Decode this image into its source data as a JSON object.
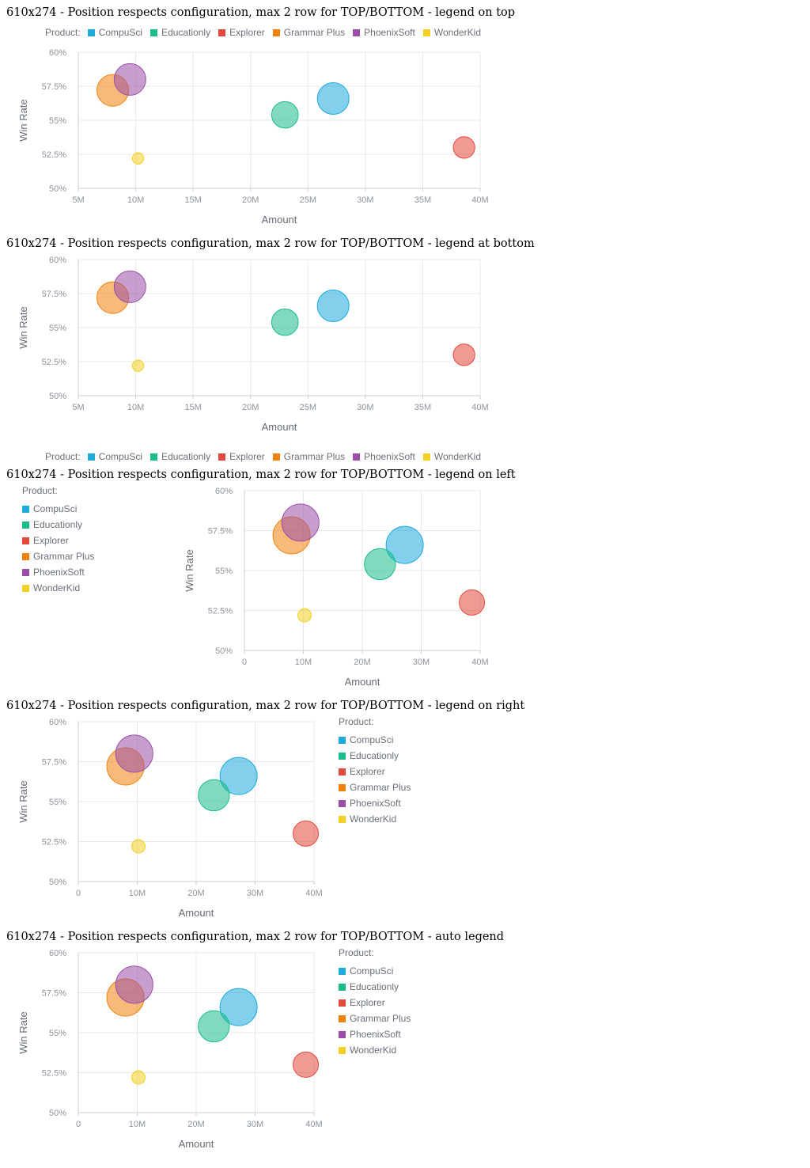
{
  "legend_title": "Product:",
  "products": [
    {
      "name": "CompuSci",
      "color": "#1eaadc"
    },
    {
      "name": "Educationly",
      "color": "#1abc8c"
    },
    {
      "name": "Explorer",
      "color": "#e2493d"
    },
    {
      "name": "Grammar Plus",
      "color": "#f0820c"
    },
    {
      "name": "PhoenixSoft",
      "color": "#9b4ea8"
    },
    {
      "name": "WonderKid",
      "color": "#f2d024"
    }
  ],
  "sections": [
    {
      "title": "610x274 - Position respects configuration, max 2 row for TOP/BOTTOM - legend on top",
      "legend_position": "top"
    },
    {
      "title": "610x274 - Position respects configuration, max 2 row for TOP/BOTTOM - legend at bottom",
      "legend_position": "bottom"
    },
    {
      "title": "610x274 - Position respects configuration, max 2 row for TOP/BOTTOM - legend on left",
      "legend_position": "left"
    },
    {
      "title": "610x274 - Position respects configuration, max 2 row for TOP/BOTTOM - legend on right",
      "legend_position": "right"
    },
    {
      "title": "610x274 - Position respects configuration, max 2 row for TOP/BOTTOM - auto legend",
      "legend_position": "right"
    }
  ],
  "chart_data": [
    {
      "type": "scatter",
      "xlabel": "Amount",
      "ylabel": "Win Rate",
      "xlim": [
        5,
        40
      ],
      "ylim": [
        50,
        60
      ],
      "x_ticks": [
        "5M",
        "10M",
        "15M",
        "20M",
        "25M",
        "30M",
        "35M",
        "40M"
      ],
      "y_ticks": [
        "50%",
        "52.5%",
        "55%",
        "57.5%",
        "60%"
      ],
      "points": [
        {
          "series": "CompuSci",
          "x": 27.2,
          "y": 56.6,
          "size": 5
        },
        {
          "series": "Educationly",
          "x": 23,
          "y": 55.4,
          "size": 4
        },
        {
          "series": "Explorer",
          "x": 38.6,
          "y": 53,
          "size": 3
        },
        {
          "series": "Grammar Plus",
          "x": 8,
          "y": 57.2,
          "size": 5
        },
        {
          "series": "PhoenixSoft",
          "x": 9.5,
          "y": 58,
          "size": 5
        },
        {
          "series": "WonderKid",
          "x": 10.2,
          "y": 52.2,
          "size": 1
        }
      ]
    },
    {
      "type": "scatter",
      "xlabel": "Amount",
      "ylabel": "Win Rate",
      "xlim": [
        5,
        40
      ],
      "ylim": [
        50,
        60
      ],
      "x_ticks": [
        "5M",
        "10M",
        "15M",
        "20M",
        "25M",
        "30M",
        "35M",
        "40M"
      ],
      "y_ticks": [
        "50%",
        "52.5%",
        "55%",
        "57.5%",
        "60%"
      ],
      "points": [
        {
          "series": "CompuSci",
          "x": 27.2,
          "y": 56.6,
          "size": 5
        },
        {
          "series": "Educationly",
          "x": 23,
          "y": 55.4,
          "size": 4
        },
        {
          "series": "Explorer",
          "x": 38.6,
          "y": 53,
          "size": 3
        },
        {
          "series": "Grammar Plus",
          "x": 8,
          "y": 57.2,
          "size": 5
        },
        {
          "series": "PhoenixSoft",
          "x": 9.5,
          "y": 58,
          "size": 5
        },
        {
          "series": "WonderKid",
          "x": 10.2,
          "y": 52.2,
          "size": 1
        }
      ]
    },
    {
      "type": "scatter",
      "xlabel": "Amount",
      "ylabel": "Win Rate",
      "xlim": [
        0,
        40
      ],
      "ylim": [
        50,
        60
      ],
      "x_ticks": [
        "0",
        "10M",
        "20M",
        "30M",
        "40M"
      ],
      "y_ticks": [
        "50%",
        "52.5%",
        "55%",
        "57.5%",
        "60%"
      ],
      "points": [
        {
          "series": "CompuSci",
          "x": 27.2,
          "y": 56.6,
          "size": 5
        },
        {
          "series": "Educationly",
          "x": 23,
          "y": 55.4,
          "size": 4
        },
        {
          "series": "Explorer",
          "x": 38.6,
          "y": 53,
          "size": 3
        },
        {
          "series": "Grammar Plus",
          "x": 8,
          "y": 57.2,
          "size": 5
        },
        {
          "series": "PhoenixSoft",
          "x": 9.5,
          "y": 58,
          "size": 5
        },
        {
          "series": "WonderKid",
          "x": 10.2,
          "y": 52.2,
          "size": 1
        }
      ]
    },
    {
      "type": "scatter",
      "xlabel": "Amount",
      "ylabel": "Win Rate",
      "xlim": [
        0,
        40
      ],
      "ylim": [
        50,
        60
      ],
      "x_ticks": [
        "0",
        "10M",
        "20M",
        "30M",
        "40M"
      ],
      "y_ticks": [
        "50%",
        "52.5%",
        "55%",
        "57.5%",
        "60%"
      ],
      "points": [
        {
          "series": "CompuSci",
          "x": 27.2,
          "y": 56.6,
          "size": 5
        },
        {
          "series": "Educationly",
          "x": 23,
          "y": 55.4,
          "size": 4
        },
        {
          "series": "Explorer",
          "x": 38.6,
          "y": 53,
          "size": 3
        },
        {
          "series": "Grammar Plus",
          "x": 8,
          "y": 57.2,
          "size": 5
        },
        {
          "series": "PhoenixSoft",
          "x": 9.5,
          "y": 58,
          "size": 5
        },
        {
          "series": "WonderKid",
          "x": 10.2,
          "y": 52.2,
          "size": 1
        }
      ]
    },
    {
      "type": "scatter",
      "xlabel": "Amount",
      "ylabel": "Win Rate",
      "xlim": [
        0,
        40
      ],
      "ylim": [
        50,
        60
      ],
      "x_ticks": [
        "0",
        "10M",
        "20M",
        "30M",
        "40M"
      ],
      "y_ticks": [
        "50%",
        "52.5%",
        "55%",
        "57.5%",
        "60%"
      ],
      "points": [
        {
          "series": "CompuSci",
          "x": 27.2,
          "y": 56.6,
          "size": 5
        },
        {
          "series": "Educationly",
          "x": 23,
          "y": 55.4,
          "size": 4
        },
        {
          "series": "Explorer",
          "x": 38.6,
          "y": 53,
          "size": 3
        },
        {
          "series": "Grammar Plus",
          "x": 8,
          "y": 57.2,
          "size": 5
        },
        {
          "series": "PhoenixSoft",
          "x": 9.5,
          "y": 58,
          "size": 5
        },
        {
          "series": "WonderKid",
          "x": 10.2,
          "y": 52.2,
          "size": 1
        }
      ]
    }
  ]
}
